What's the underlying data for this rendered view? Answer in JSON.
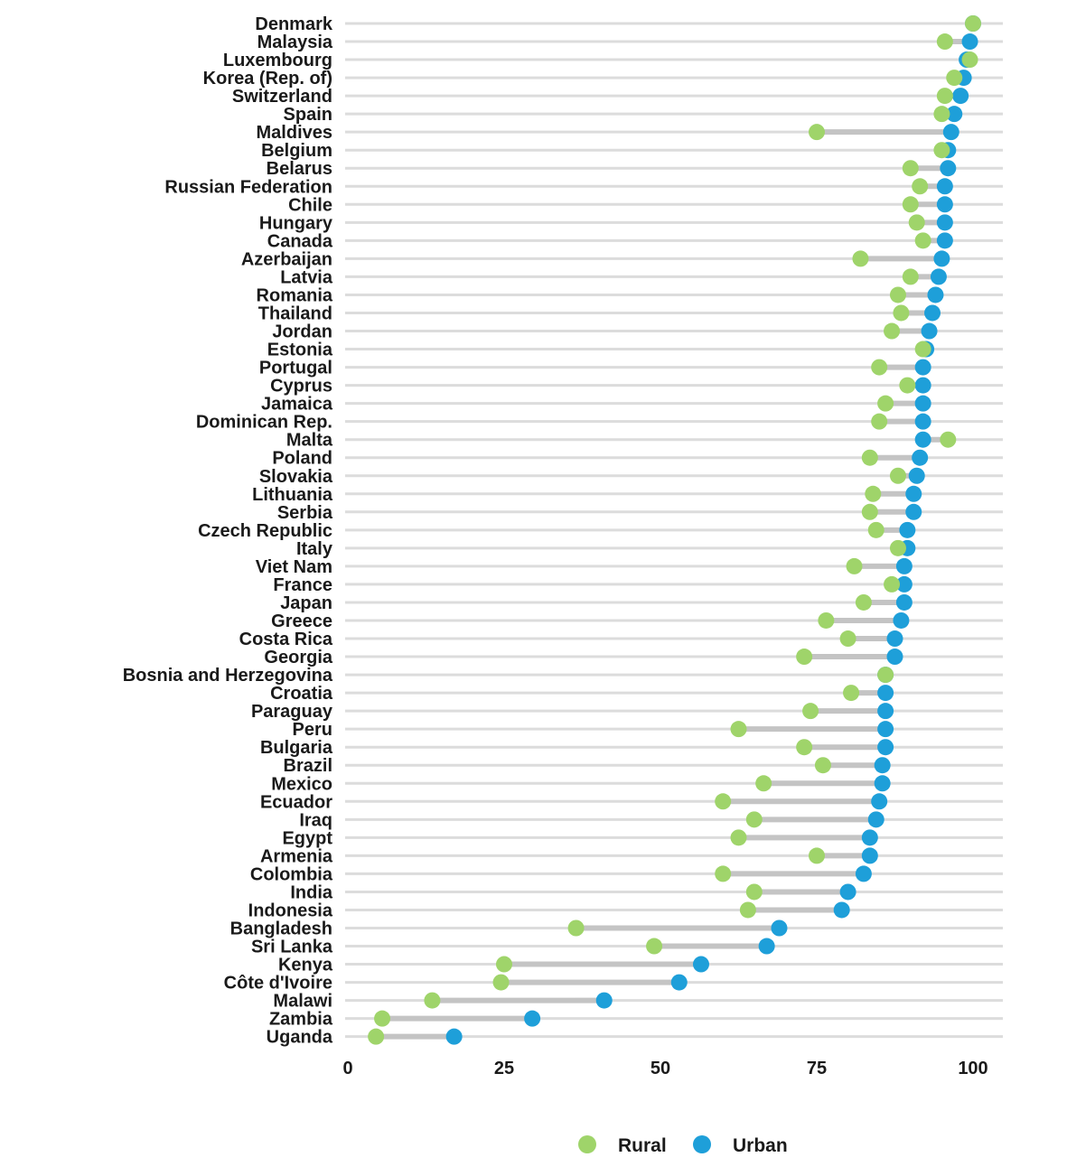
{
  "chart_data": {
    "type": "dumbbell",
    "title": "",
    "xlabel": "",
    "ylabel": "",
    "xlim": [
      0,
      100
    ],
    "xticks": [
      0,
      25,
      50,
      75,
      100
    ],
    "series": [
      {
        "name": "Rural",
        "color": "#9fd46a"
      },
      {
        "name": "Urban",
        "color": "#1e9fd9"
      }
    ],
    "countries": [
      {
        "name": "Denmark",
        "rural": 100,
        "urban": 100
      },
      {
        "name": "Malaysia",
        "rural": 95.5,
        "urban": 99.5
      },
      {
        "name": "Luxembourg",
        "rural": 99.5,
        "urban": 99
      },
      {
        "name": "Korea (Rep. of)",
        "rural": 97,
        "urban": 98.5
      },
      {
        "name": "Switzerland",
        "rural": 95.5,
        "urban": 98
      },
      {
        "name": "Spain",
        "rural": 95,
        "urban": 97
      },
      {
        "name": "Maldives",
        "rural": 75,
        "urban": 96.5
      },
      {
        "name": "Belgium",
        "rural": 95,
        "urban": 96
      },
      {
        "name": "Belarus",
        "rural": 90,
        "urban": 96
      },
      {
        "name": "Russian Federation",
        "rural": 91.5,
        "urban": 95.5
      },
      {
        "name": "Chile",
        "rural": 90,
        "urban": 95.5
      },
      {
        "name": "Hungary",
        "rural": 91,
        "urban": 95.5
      },
      {
        "name": "Canada",
        "rural": 92,
        "urban": 95.5
      },
      {
        "name": "Azerbaijan",
        "rural": 82,
        "urban": 95
      },
      {
        "name": "Latvia",
        "rural": 90,
        "urban": 94.5
      },
      {
        "name": "Romania",
        "rural": 88,
        "urban": 94
      },
      {
        "name": "Thailand",
        "rural": 88.5,
        "urban": 93.5
      },
      {
        "name": "Jordan",
        "rural": 87,
        "urban": 93
      },
      {
        "name": "Estonia",
        "rural": 92,
        "urban": 92.5
      },
      {
        "name": "Portugal",
        "rural": 85,
        "urban": 92
      },
      {
        "name": "Cyprus",
        "rural": 89.5,
        "urban": 92
      },
      {
        "name": "Jamaica",
        "rural": 86,
        "urban": 92
      },
      {
        "name": "Dominican Rep.",
        "rural": 85,
        "urban": 92
      },
      {
        "name": "Malta",
        "rural": 96,
        "urban": 92
      },
      {
        "name": "Poland",
        "rural": 83.5,
        "urban": 91.5
      },
      {
        "name": "Slovakia",
        "rural": 88,
        "urban": 91
      },
      {
        "name": "Lithuania",
        "rural": 84,
        "urban": 90.5
      },
      {
        "name": "Serbia",
        "rural": 83.5,
        "urban": 90.5
      },
      {
        "name": "Czech Republic",
        "rural": 84.5,
        "urban": 89.5
      },
      {
        "name": "Italy",
        "rural": 88,
        "urban": 89.5
      },
      {
        "name": "Viet Nam",
        "rural": 81,
        "urban": 89
      },
      {
        "name": "France",
        "rural": 87,
        "urban": 89
      },
      {
        "name": "Japan",
        "rural": 82.5,
        "urban": 89
      },
      {
        "name": "Greece",
        "rural": 76.5,
        "urban": 88.5
      },
      {
        "name": "Costa Rica",
        "rural": 80,
        "urban": 87.5
      },
      {
        "name": "Georgia",
        "rural": 73,
        "urban": 87.5
      },
      {
        "name": "Bosnia and Herzegovina",
        "rural": 86,
        "urban": 86
      },
      {
        "name": "Croatia",
        "rural": 80.5,
        "urban": 86
      },
      {
        "name": "Paraguay",
        "rural": 74,
        "urban": 86
      },
      {
        "name": "Peru",
        "rural": 62.5,
        "urban": 86
      },
      {
        "name": "Bulgaria",
        "rural": 73,
        "urban": 86
      },
      {
        "name": "Brazil",
        "rural": 76,
        "urban": 85.5
      },
      {
        "name": "Mexico",
        "rural": 66.5,
        "urban": 85.5
      },
      {
        "name": "Ecuador",
        "rural": 60,
        "urban": 85
      },
      {
        "name": "Iraq",
        "rural": 65,
        "urban": 84.5
      },
      {
        "name": "Egypt",
        "rural": 62.5,
        "urban": 83.5
      },
      {
        "name": "Armenia",
        "rural": 75,
        "urban": 83.5
      },
      {
        "name": "Colombia",
        "rural": 60,
        "urban": 82.5
      },
      {
        "name": "India",
        "rural": 65,
        "urban": 80
      },
      {
        "name": "Indonesia",
        "rural": 64,
        "urban": 79
      },
      {
        "name": "Bangladesh",
        "rural": 36.5,
        "urban": 69
      },
      {
        "name": "Sri Lanka",
        "rural": 49,
        "urban": 67
      },
      {
        "name": "Kenya",
        "rural": 25,
        "urban": 56.5
      },
      {
        "name": "Côte d'Ivoire",
        "rural": 24.5,
        "urban": 53
      },
      {
        "name": "Malawi",
        "rural": 13.5,
        "urban": 41
      },
      {
        "name": "Zambia",
        "rural": 5.5,
        "urban": 29.5
      },
      {
        "name": "Uganda",
        "rural": 4.5,
        "urban": 17
      }
    ]
  },
  "legend": {
    "rural_label": "Rural",
    "urban_label": "Urban"
  }
}
